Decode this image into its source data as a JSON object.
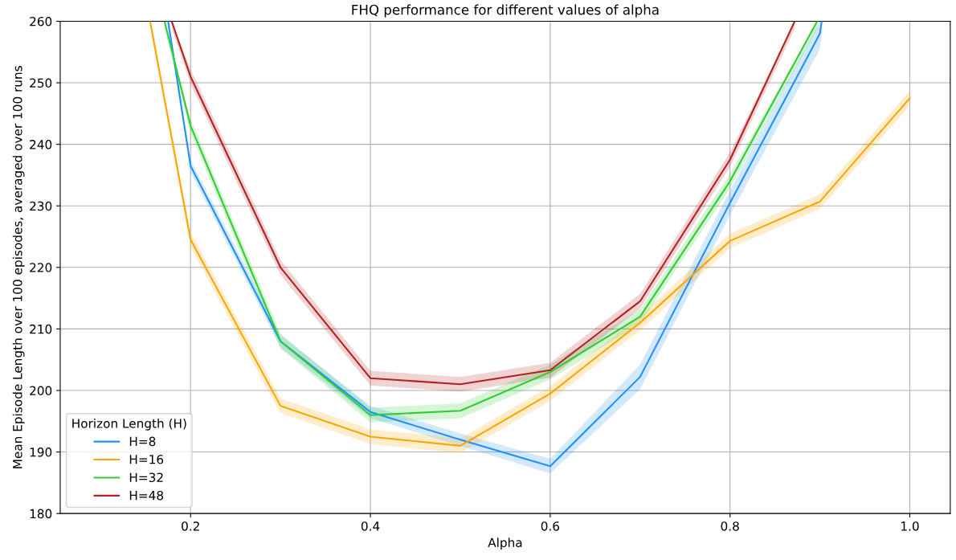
{
  "chart_data": {
    "type": "line",
    "title": "FHQ performance for different values of alpha",
    "xlabel": "Alpha",
    "ylabel": "Mean Episode Length over 100 episodes, averaged over 100 runs",
    "legend_title": "Horizon Length (H)",
    "legend": "bottom left",
    "grid": true,
    "xlim": [
      0.055,
      1.045
    ],
    "xticks": [
      0.2,
      0.4,
      0.6,
      0.8,
      {
        "value": 1.0,
        "label": "1.0"
      }
    ],
    "ylim": [
      180,
      260
    ],
    "yticks": [
      180,
      190,
      200,
      210,
      220,
      230,
      240,
      250,
      260
    ],
    "series": [
      {
        "name": "H=8",
        "color": "#1e90ff",
        "x": [
          0.175,
          0.2,
          0.3,
          0.4,
          0.5,
          0.6,
          0.7,
          0.8,
          0.9,
          0.902
        ],
        "values": [
          260,
          236.5,
          208,
          196.5,
          192,
          187.7,
          202.2,
          230.5,
          258,
          260
        ],
        "lower": [
          259,
          235.5,
          207,
          195.5,
          191,
          186.5,
          200.2,
          228.5,
          255.5,
          257.5
        ],
        "upper": [
          260,
          237.5,
          209,
          197.5,
          193,
          188.9,
          204.2,
          232.5,
          260,
          260
        ]
      },
      {
        "name": "H=16",
        "color": "#ffa500",
        "x": [
          0.155,
          0.2,
          0.3,
          0.4,
          0.5,
          0.6,
          0.7,
          0.8,
          0.9,
          1.0
        ],
        "values": [
          260,
          224.5,
          197.5,
          192.5,
          191,
          199.5,
          211,
          224.3,
          230.7,
          247.5
        ],
        "lower": [
          258.8,
          223.3,
          196.3,
          191.3,
          189.8,
          198.3,
          209.8,
          223.1,
          229.5,
          246.3
        ],
        "upper": [
          260,
          225.7,
          198.7,
          193.7,
          192.2,
          200.7,
          212.2,
          225.5,
          231.9,
          248.7
        ]
      },
      {
        "name": "H=32",
        "color": "#32cd32",
        "x": [
          0.171,
          0.2,
          0.3,
          0.4,
          0.5,
          0.6,
          0.7,
          0.8,
          0.897
        ],
        "values": [
          260,
          243,
          208,
          196,
          196.7,
          203,
          212,
          234,
          260
        ],
        "lower": [
          258.8,
          241.8,
          206.8,
          194.8,
          195.5,
          201.8,
          210.8,
          232.8,
          258.8
        ],
        "upper": [
          260,
          244.2,
          209.2,
          197.2,
          197.9,
          204.2,
          213.2,
          235.2,
          260
        ]
      },
      {
        "name": "H=48",
        "color": "#b22222",
        "x": [
          0.179,
          0.2,
          0.3,
          0.4,
          0.5,
          0.6,
          0.7,
          0.8,
          0.872
        ],
        "values": [
          260,
          251,
          220,
          202,
          201,
          203.3,
          214.5,
          237.5,
          260
        ],
        "lower": [
          258.8,
          249.8,
          218.8,
          200.8,
          199.8,
          202.1,
          213.3,
          236.3,
          258.8
        ],
        "upper": [
          260,
          252.2,
          221.2,
          203.2,
          202.2,
          204.5,
          215.7,
          238.7,
          260
        ]
      }
    ]
  }
}
